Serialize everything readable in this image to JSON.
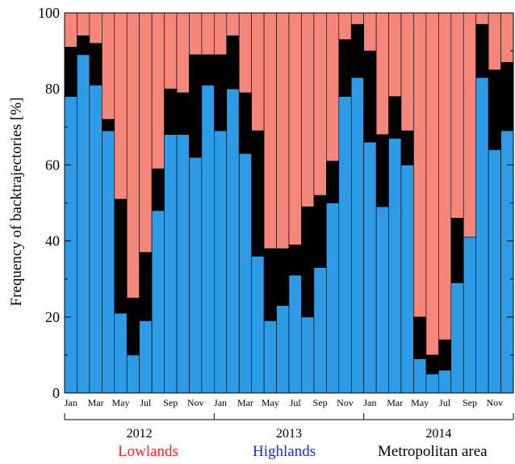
{
  "chart_data": {
    "type": "bar",
    "stacked": true,
    "ylabel": "Frequency of backtrajectories [%]",
    "ylim": [
      0,
      100
    ],
    "yticks": [
      0,
      20,
      40,
      60,
      80,
      100
    ],
    "grid": false,
    "legend_placement": "bottom",
    "categories": [
      "Jan",
      "Feb",
      "Mar",
      "Apr",
      "May",
      "Jun",
      "Jul",
      "Aug",
      "Sep",
      "Oct",
      "Nov",
      "Dec",
      "Jan",
      "Feb",
      "Mar",
      "Apr",
      "May",
      "Jun",
      "Jul",
      "Aug",
      "Sep",
      "Oct",
      "Nov",
      "Dec",
      "Jan",
      "Feb",
      "Mar",
      "Apr",
      "May",
      "Jun",
      "Jul",
      "Aug",
      "Sep",
      "Oct",
      "Nov",
      "Dec"
    ],
    "tick_labels": [
      "Jan",
      "",
      "Mar",
      "",
      "May",
      "",
      "Jul",
      "",
      "Sep",
      "",
      "Nov",
      "",
      "Jan",
      "",
      "Mar",
      "",
      "May",
      "",
      "Jul",
      "",
      "Sep",
      "",
      "Nov",
      "",
      "Jan",
      "",
      "Mar",
      "",
      "May",
      "",
      "Jul",
      "",
      "Sep",
      "",
      "Nov",
      ""
    ],
    "years": [
      "2012",
      "2013",
      "2014"
    ],
    "series": [
      {
        "name": "Highlands",
        "color": "#2e9be6",
        "values": [
          78,
          89,
          81,
          69,
          21,
          10,
          19,
          48,
          68,
          68,
          62,
          81,
          69,
          80,
          63,
          36,
          19,
          23,
          31,
          20,
          33,
          50,
          78,
          83,
          66,
          49,
          67,
          60,
          9,
          5,
          6,
          29,
          41,
          83,
          64,
          69
        ]
      },
      {
        "name": "Metropolitan area",
        "color": "#000000",
        "values": [
          13,
          5,
          11,
          3,
          30,
          15,
          18,
          11,
          12,
          11,
          27,
          8,
          20,
          14,
          16,
          33,
          19,
          15,
          8,
          29,
          19,
          11,
          15,
          14,
          24,
          19,
          11,
          9,
          11,
          5,
          8,
          17,
          0,
          14,
          21,
          18
        ]
      },
      {
        "name": "Lowlands",
        "color": "#f4877a",
        "values": [
          9,
          6,
          8,
          28,
          49,
          75,
          63,
          41,
          20,
          21,
          11,
          11,
          11,
          6,
          21,
          31,
          62,
          62,
          61,
          51,
          48,
          39,
          7,
          3,
          10,
          32,
          22,
          31,
          80,
          90,
          86,
          54,
          59,
          3,
          15,
          13
        ]
      }
    ],
    "legend": [
      {
        "label": "Lowlands",
        "color": "#ff1f1f"
      },
      {
        "label": "Highlands",
        "color": "#1d2be0"
      },
      {
        "label": "Metropolitan area",
        "color": "#000000"
      }
    ]
  }
}
